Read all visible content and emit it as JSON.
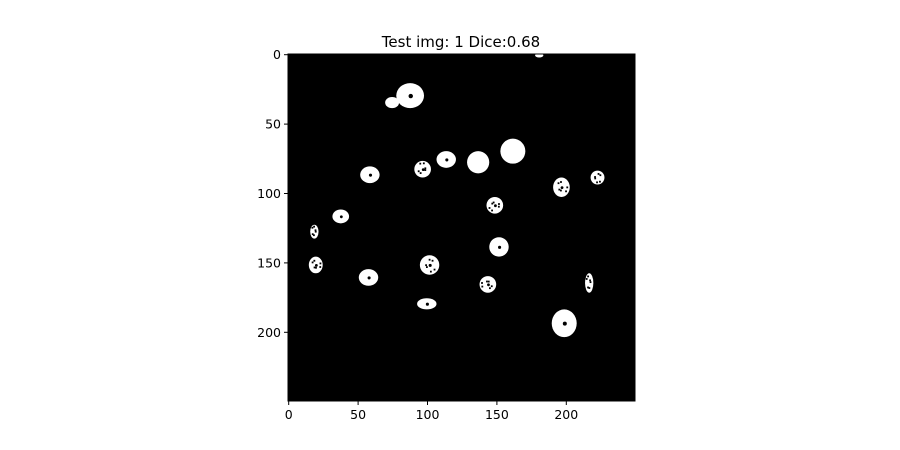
{
  "figure": {
    "title": "Test img: 1 Dice:0.68",
    "image": {
      "description_colors": {
        "background": "#000000",
        "foreground": "#ffffff"
      },
      "pixel_size": [
        250,
        250
      ]
    },
    "axes": {
      "x_ticks": [
        0,
        50,
        100,
        150,
        200
      ],
      "y_ticks": [
        0,
        50,
        100,
        150,
        200
      ]
    },
    "blobs": [
      {
        "x": 181,
        "y": 1,
        "rx": 3,
        "ry": 1.5,
        "hole": false
      },
      {
        "x": 88,
        "y": 30,
        "rx": 10,
        "ry": 9,
        "hole": true
      },
      {
        "x": 75,
        "y": 35,
        "rx": 5,
        "ry": 4,
        "hole": false
      },
      {
        "x": 162,
        "y": 70,
        "rx": 9,
        "ry": 9,
        "hole": false
      },
      {
        "x": 137,
        "y": 78,
        "rx": 8,
        "ry": 8,
        "hole": false
      },
      {
        "x": 114,
        "y": 76,
        "rx": 7,
        "ry": 6,
        "hole": true
      },
      {
        "x": 97,
        "y": 83,
        "rx": 6,
        "ry": 6,
        "hole": true,
        "speckled": true
      },
      {
        "x": 59,
        "y": 87,
        "rx": 7,
        "ry": 6,
        "hole": true
      },
      {
        "x": 197,
        "y": 96,
        "rx": 6,
        "ry": 7,
        "hole": true,
        "speckled": true
      },
      {
        "x": 223,
        "y": 89,
        "rx": 5,
        "ry": 5,
        "hole": false,
        "speckled": true
      },
      {
        "x": 149,
        "y": 109,
        "rx": 6,
        "ry": 6,
        "hole": true,
        "speckled": true
      },
      {
        "x": 38,
        "y": 117,
        "rx": 6,
        "ry": 5,
        "hole": true
      },
      {
        "x": 19,
        "y": 128,
        "rx": 3,
        "ry": 5,
        "hole": false,
        "speckled": true
      },
      {
        "x": 152,
        "y": 139,
        "rx": 7,
        "ry": 7,
        "hole": true
      },
      {
        "x": 20,
        "y": 152,
        "rx": 5,
        "ry": 6,
        "hole": true,
        "speckled": true
      },
      {
        "x": 102,
        "y": 152,
        "rx": 7,
        "ry": 7,
        "hole": true,
        "speckled": true
      },
      {
        "x": 58,
        "y": 161,
        "rx": 7,
        "ry": 6,
        "hole": true
      },
      {
        "x": 144,
        "y": 166,
        "rx": 6,
        "ry": 6,
        "hole": true,
        "speckled": true
      },
      {
        "x": 217,
        "y": 165,
        "rx": 3,
        "ry": 7,
        "hole": false,
        "speckled": true
      },
      {
        "x": 100,
        "y": 180,
        "rx": 7,
        "ry": 4,
        "hole": true
      },
      {
        "x": 199,
        "y": 194,
        "rx": 9,
        "ry": 10,
        "hole": true
      }
    ]
  }
}
